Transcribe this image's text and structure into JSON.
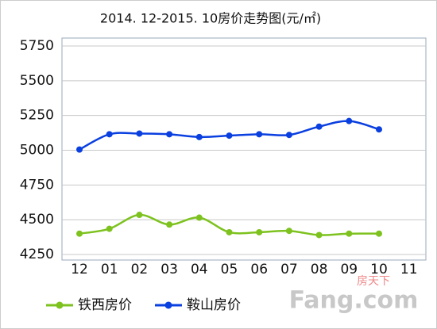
{
  "chart_data": {
    "type": "line",
    "title": "2014. 12-2015. 10房价走势图(元/㎡)",
    "categories": [
      "12",
      "01",
      "02",
      "03",
      "04",
      "05",
      "06",
      "07",
      "08",
      "09",
      "10",
      "11"
    ],
    "series": [
      {
        "name": "铁西房价",
        "color": "#7dc21e",
        "values": [
          4400,
          4435,
          4535,
          4465,
          4515,
          4410,
          4410,
          4420,
          4390,
          4400,
          4400,
          null
        ]
      },
      {
        "name": "鞍山房价",
        "color": "#0a3fe0",
        "values": [
          5005,
          5115,
          5120,
          5115,
          5095,
          5105,
          5115,
          5110,
          5170,
          5210,
          5150,
          null
        ]
      }
    ],
    "ylim": [
      4250,
      5750
    ],
    "yticks": [
      4250,
      4500,
      4750,
      5000,
      5250,
      5500,
      5750
    ],
    "grid": true,
    "legend": "bottom",
    "watermark": [
      "房天下",
      "Fang.com"
    ]
  }
}
